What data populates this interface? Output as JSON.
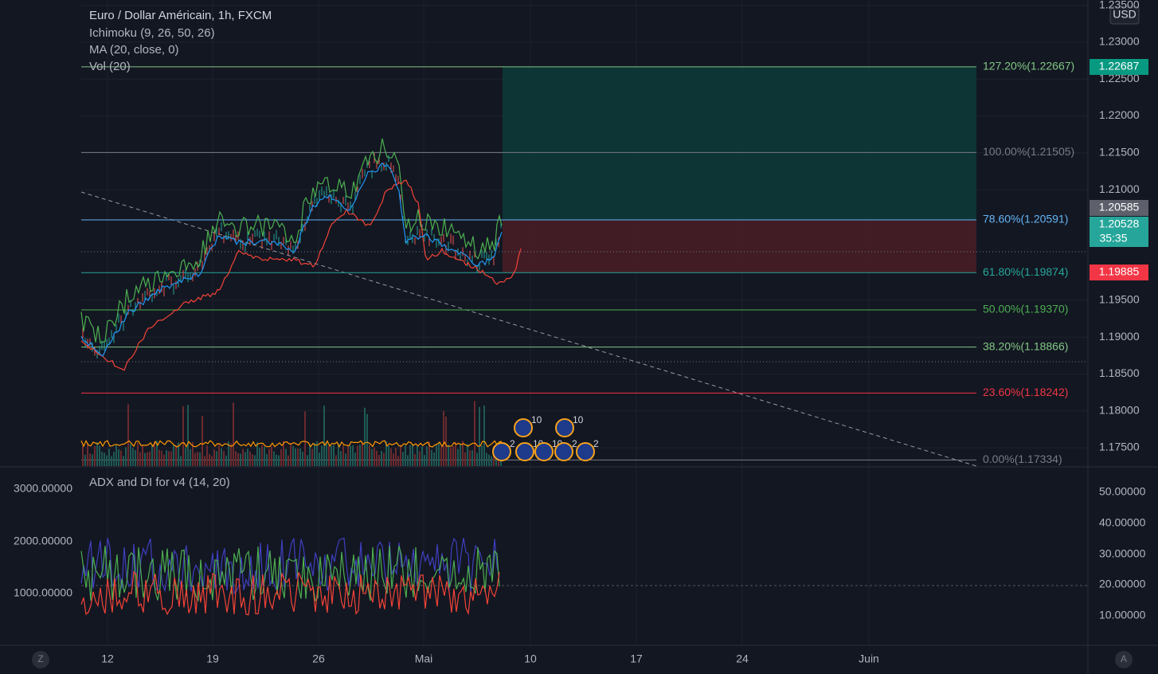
{
  "header": {
    "symbol": "Euro / Dollar Américain, 1h, FXCM",
    "indicators": [
      "Ichimoku (9, 26, 50, 26)",
      "MA (20, close, 0)",
      "Vol (20)"
    ]
  },
  "currency": "USD",
  "price_axis": {
    "ticks": [
      {
        "value": 1.235,
        "label": "1.23500"
      },
      {
        "value": 1.23,
        "label": "1.23000"
      },
      {
        "value": 1.225,
        "label": "1.22500"
      },
      {
        "value": 1.22,
        "label": "1.22000"
      },
      {
        "value": 1.215,
        "label": "1.21500"
      },
      {
        "value": 1.21,
        "label": "1.21000"
      },
      {
        "value": 1.195,
        "label": "1.19500"
      },
      {
        "value": 1.19,
        "label": "1.19000"
      },
      {
        "value": 1.185,
        "label": "1.18500"
      },
      {
        "value": 1.18,
        "label": "1.18000"
      },
      {
        "value": 1.175,
        "label": "1.17500"
      }
    ]
  },
  "fib_levels": [
    {
      "label": "127.20%(1.22667)",
      "price": 1.22667,
      "color": "#81c784"
    },
    {
      "label": "100.00%(1.21505)",
      "price": 1.21505,
      "color": "#787b86"
    },
    {
      "label": "78.60%(1.20591)",
      "price": 1.20591,
      "color": "#64b5f6"
    },
    {
      "label": "61.80%(1.19874)",
      "price": 1.19874,
      "color": "#26a69a"
    },
    {
      "label": "50.00%(1.19370)",
      "price": 1.1937,
      "color": "#4caf50"
    },
    {
      "label": "38.20%(1.18866)",
      "price": 1.18866,
      "color": "#81c784"
    },
    {
      "label": "23.60%(1.18242)",
      "price": 1.18242,
      "color": "#f23645"
    },
    {
      "label": "0.00%(1.17334)",
      "price": 1.17334,
      "color": "#787b86"
    }
  ],
  "badges": {
    "target": "1.22687",
    "last": "1.20585",
    "current": "1.20528",
    "countdown": "35:35",
    "stop": "1.19885"
  },
  "events": [
    "10",
    "10",
    "2",
    "10",
    "10",
    "2",
    "2"
  ],
  "adx": {
    "title": "ADX and DI for v4 (14, 20)",
    "left_ticks": [
      "3000.00000",
      "2000.00000",
      "1000.00000"
    ],
    "right_ticks": [
      "50.00000",
      "40.00000",
      "30.00000",
      "20.00000",
      "10.00000"
    ]
  },
  "time_axis": [
    "12",
    "19",
    "26",
    "Mai",
    "10",
    "17",
    "24",
    "Juin"
  ],
  "buttons": [
    "Z",
    "A"
  ]
}
